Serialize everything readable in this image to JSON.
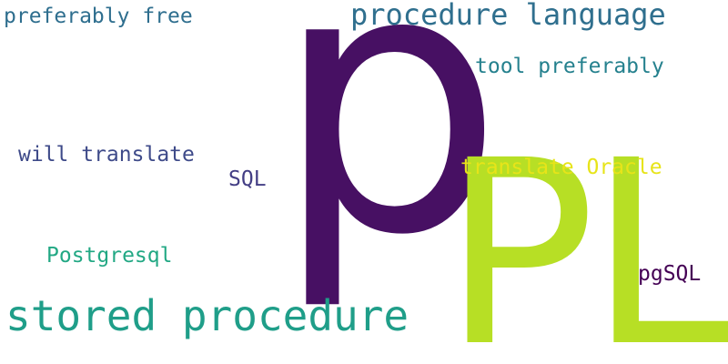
{
  "words": [
    {
      "id": "p",
      "text": "p",
      "color": "#471063"
    },
    {
      "id": "pl",
      "text": "PL",
      "color": "#b7df25"
    },
    {
      "id": "proc_lang",
      "text": "procedure language",
      "color": "#2f6f8e"
    },
    {
      "id": "pref_free",
      "text": "preferably free",
      "color": "#2e6e8e"
    },
    {
      "id": "tool_pref",
      "text": "tool preferably",
      "color": "#25818e"
    },
    {
      "id": "will_trans",
      "text": "will translate",
      "color": "#3e4a89"
    },
    {
      "id": "trans_ora",
      "text": "translate Oracle",
      "color": "#e7e419"
    },
    {
      "id": "sql",
      "text": "SQL",
      "color": "#433e85"
    },
    {
      "id": "postgresql",
      "text": "Postgresql",
      "color": "#22a884"
    },
    {
      "id": "pgsql",
      "text": "pgSQL",
      "color": "#440154"
    },
    {
      "id": "stored_proc",
      "text": "stored procedure",
      "color": "#1f9e89"
    }
  ]
}
